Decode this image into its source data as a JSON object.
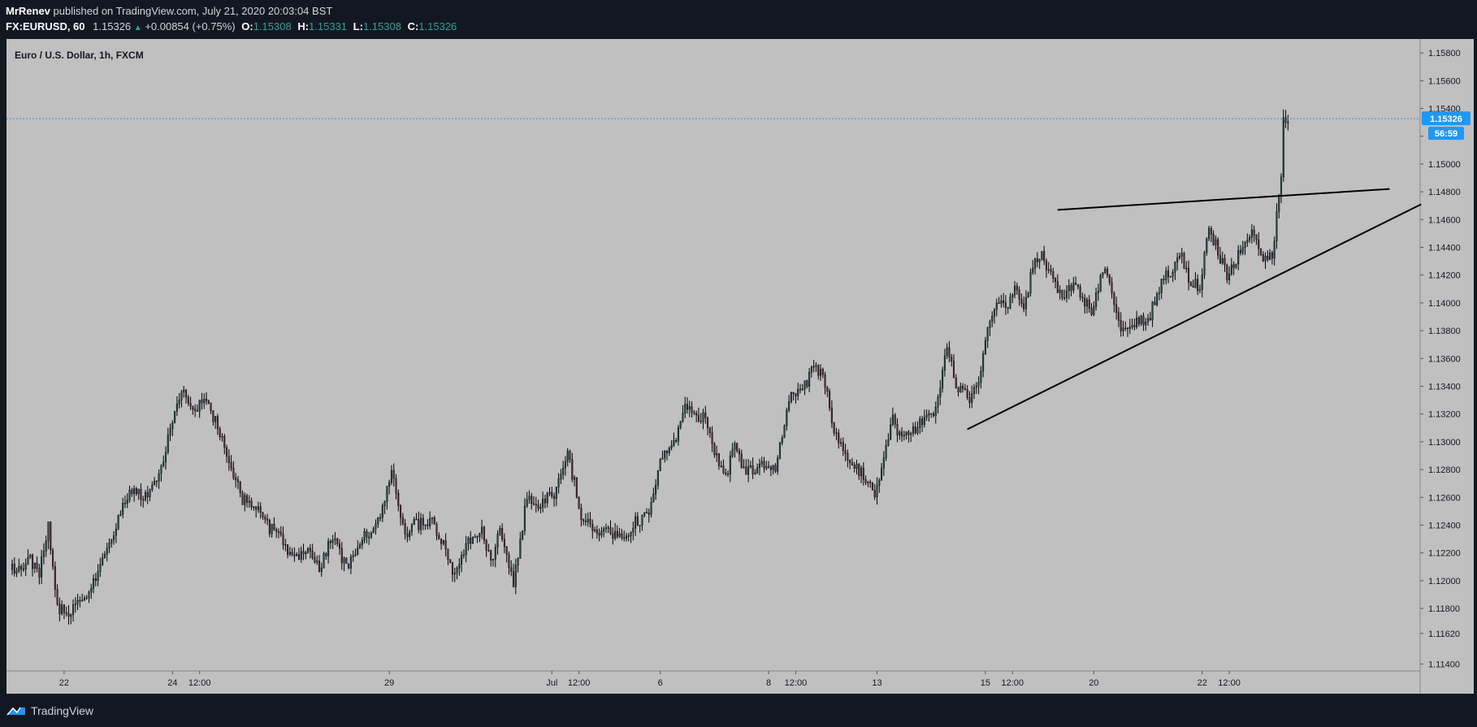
{
  "header": {
    "author": "MrRenev",
    "published": "published on TradingView.com, July 21, 2020 20:03:04 BST",
    "symbol": "FX:EURUSD, 60",
    "last": "1.15326",
    "change": "+0.00854 (+0.75%)",
    "change_arrow": "▲",
    "o_label": "O:",
    "o_value": "1.15308",
    "h_label": "H:",
    "h_value": "1.15331",
    "l_label": "L:",
    "l_value": "1.15308",
    "c_label": "C:",
    "c_value": "1.15326"
  },
  "footer": {
    "brand": "TradingView",
    "logo_icon": "tradingview-logo-icon"
  },
  "colors": {
    "chart_bg": "#c0c0c0",
    "page_bg": "#131722",
    "up_body": "#1f4a50",
    "down_body": "#5a2838",
    "wick": "#000000",
    "price_label_bg": "#2196f3",
    "trendline": "#000000"
  },
  "chart_data": {
    "type": "candlestick",
    "title": "Euro / U.S. Dollar, 1h, FXCM",
    "ylim": [
      1.1135,
      1.159
    ],
    "y_ticks": [
      "1.15800",
      "1.15600",
      "1.15400",
      "1.15200",
      "1.15000",
      "1.14800",
      "1.14600",
      "1.14400",
      "1.14200",
      "1.14000",
      "1.13800",
      "1.13600",
      "1.13400",
      "1.13200",
      "1.13000",
      "1.12800",
      "1.12600",
      "1.12400",
      "1.12200",
      "1.12000",
      "1.11800",
      "1.11620",
      "1.11400"
    ],
    "y_tick_values": [
      1.158,
      1.156,
      1.154,
      1.152,
      1.15,
      1.148,
      1.146,
      1.144,
      1.142,
      1.14,
      1.138,
      1.136,
      1.134,
      1.132,
      1.13,
      1.128,
      1.126,
      1.124,
      1.122,
      1.12,
      1.118,
      1.1162,
      1.114
    ],
    "x_ticks": [
      "22",
      "24",
      "12:00",
      "29",
      "Jul",
      "12:00",
      "6",
      "8",
      "12:00",
      "13",
      "15",
      "12:00",
      "20",
      "22",
      "12:00"
    ],
    "x_tick_hours": [
      23,
      71,
      83,
      167,
      239,
      251,
      287,
      335,
      347,
      383,
      431,
      443,
      479,
      527,
      539
    ],
    "x_range_hours": [
      0,
      562
    ],
    "current_price": "1.15326",
    "countdown": "56:59",
    "close_path": [
      [
        0,
        1.1208
      ],
      [
        8,
        1.1215
      ],
      [
        12,
        1.1205
      ],
      [
        16,
        1.1238
      ],
      [
        20,
        1.1182
      ],
      [
        24,
        1.1175
      ],
      [
        30,
        1.1185
      ],
      [
        34,
        1.1192
      ],
      [
        40,
        1.1215
      ],
      [
        46,
        1.1238
      ],
      [
        52,
        1.1265
      ],
      [
        58,
        1.1262
      ],
      [
        64,
        1.127
      ],
      [
        70,
        1.131
      ],
      [
        76,
        1.1338
      ],
      [
        80,
        1.1325
      ],
      [
        86,
        1.1328
      ],
      [
        92,
        1.1308
      ],
      [
        96,
        1.1285
      ],
      [
        102,
        1.1258
      ],
      [
        110,
        1.1252
      ],
      [
        114,
        1.1238
      ],
      [
        118,
        1.1235
      ],
      [
        124,
        1.1215
      ],
      [
        130,
        1.1222
      ],
      [
        136,
        1.121
      ],
      [
        142,
        1.1232
      ],
      [
        148,
        1.1208
      ],
      [
        156,
        1.1232
      ],
      [
        162,
        1.1242
      ],
      [
        166,
        1.1268
      ],
      [
        168,
        1.128
      ],
      [
        174,
        1.1232
      ],
      [
        178,
        1.124
      ],
      [
        186,
        1.1242
      ],
      [
        192,
        1.1222
      ],
      [
        196,
        1.1202
      ],
      [
        202,
        1.123
      ],
      [
        208,
        1.1235
      ],
      [
        212,
        1.1212
      ],
      [
        216,
        1.1235
      ],
      [
        222,
        1.1198
      ],
      [
        228,
        1.126
      ],
      [
        234,
        1.1255
      ],
      [
        240,
        1.1262
      ],
      [
        246,
        1.1292
      ],
      [
        252,
        1.1248
      ],
      [
        258,
        1.1236
      ],
      [
        264,
        1.1238
      ],
      [
        270,
        1.1228
      ],
      [
        276,
        1.1242
      ],
      [
        282,
        1.1248
      ],
      [
        288,
        1.1292
      ],
      [
        294,
        1.13
      ],
      [
        298,
        1.1328
      ],
      [
        302,
        1.132
      ],
      [
        306,
        1.1318
      ],
      [
        310,
        1.1298
      ],
      [
        316,
        1.1275
      ],
      [
        320,
        1.1298
      ],
      [
        324,
        1.128
      ],
      [
        328,
        1.1278
      ],
      [
        334,
        1.1284
      ],
      [
        338,
        1.1282
      ],
      [
        344,
        1.133
      ],
      [
        350,
        1.1338
      ],
      [
        356,
        1.1355
      ],
      [
        360,
        1.1342
      ],
      [
        364,
        1.1305
      ],
      [
        368,
        1.1295
      ],
      [
        372,
        1.1282
      ],
      [
        376,
        1.1278
      ],
      [
        382,
        1.1262
      ],
      [
        386,
        1.1288
      ],
      [
        390,
        1.1315
      ],
      [
        394,
        1.1302
      ],
      [
        400,
        1.131
      ],
      [
        404,
        1.1318
      ],
      [
        408,
        1.1322
      ],
      [
        412,
        1.1348
      ],
      [
        414,
        1.1368
      ],
      [
        418,
        1.134
      ],
      [
        424,
        1.133
      ],
      [
        428,
        1.134
      ],
      [
        432,
        1.1378
      ],
      [
        436,
        1.14
      ],
      [
        440,
        1.1398
      ],
      [
        444,
        1.1408
      ],
      [
        448,
        1.1398
      ],
      [
        452,
        1.1425
      ],
      [
        456,
        1.1435
      ],
      [
        462,
        1.1412
      ],
      [
        466,
        1.1402
      ],
      [
        470,
        1.1415
      ],
      [
        474,
        1.1405
      ],
      [
        478,
        1.1392
      ],
      [
        484,
        1.1428
      ],
      [
        488,
        1.14
      ],
      [
        492,
        1.1378
      ],
      [
        498,
        1.1385
      ],
      [
        504,
        1.1392
      ],
      [
        510,
        1.1418
      ],
      [
        514,
        1.1425
      ],
      [
        518,
        1.1432
      ],
      [
        522,
        1.1415
      ],
      [
        526,
        1.1412
      ],
      [
        530,
        1.1452
      ],
      [
        534,
        1.1438
      ],
      [
        538,
        1.1418
      ],
      [
        542,
        1.1432
      ],
      [
        546,
        1.1448
      ],
      [
        550,
        1.1452
      ],
      [
        554,
        1.1432
      ],
      [
        558,
        1.1435
      ],
      [
        560,
        1.1462
      ],
      [
        562,
        1.149
      ],
      [
        563,
        1.153
      ],
      [
        565,
        1.1533
      ]
    ],
    "trendlines": [
      {
        "from": [
          463,
          1.1467
        ],
        "to": [
          610,
          1.1482
        ]
      },
      {
        "from": [
          423,
          1.1309
        ],
        "to": [
          624,
          1.1471
        ]
      }
    ]
  }
}
